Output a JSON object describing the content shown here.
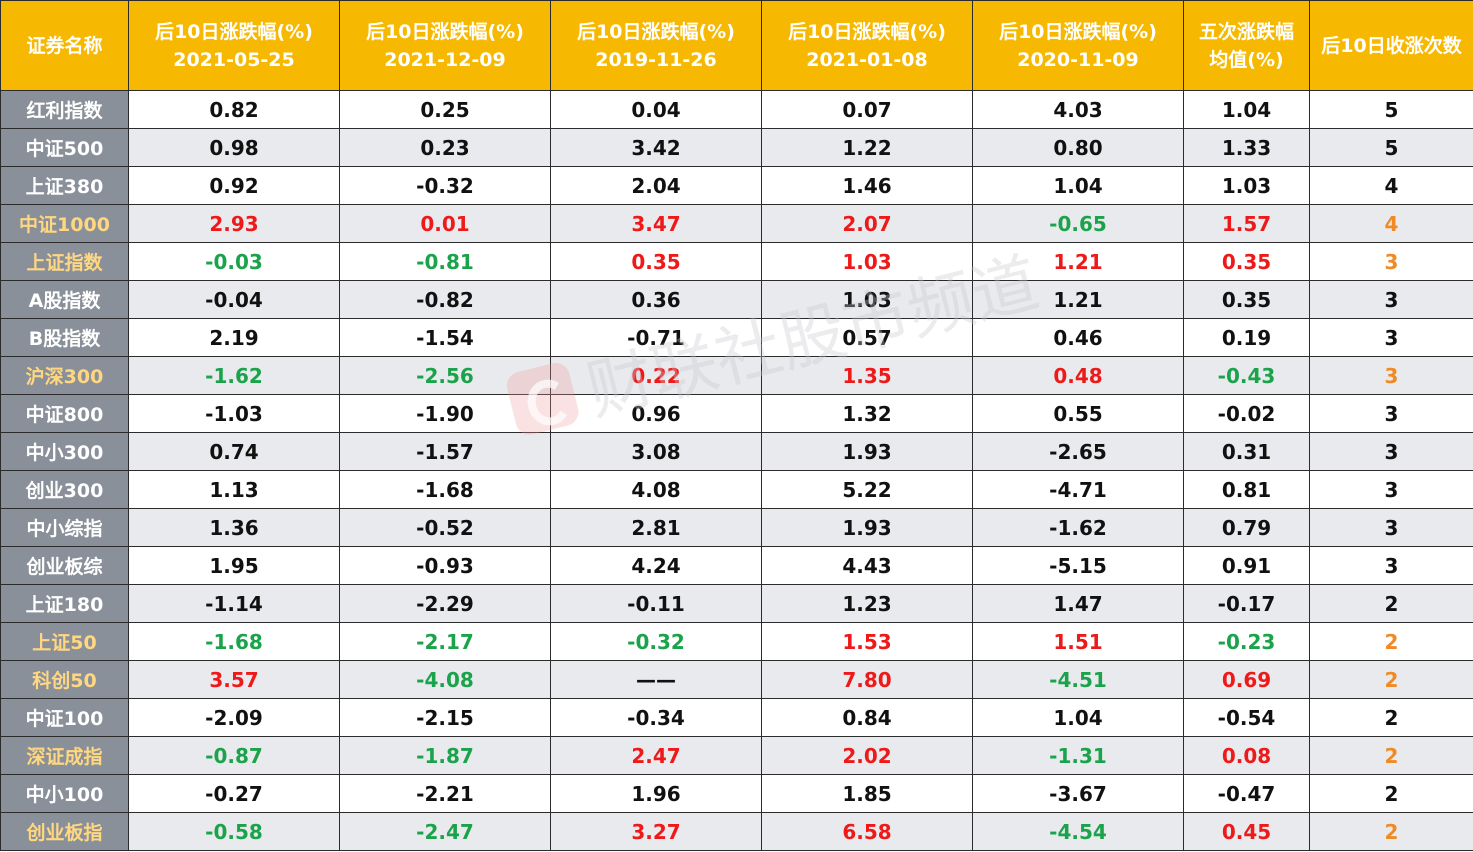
{
  "header": {
    "col0": "证券名称",
    "col1": [
      "后10日涨跌幅(%)",
      "2021-05-25"
    ],
    "col2": [
      "后10日涨跌幅(%)",
      "2021-12-09"
    ],
    "col3": [
      "后10日涨跌幅(%)",
      "2019-11-26"
    ],
    "col4": [
      "后10日涨跌幅(%)",
      "2021-01-08"
    ],
    "col5": [
      "后10日涨跌幅(%)",
      "2020-11-09"
    ],
    "col6": [
      "五次涨跌幅",
      "均值(%)"
    ],
    "col7": "后10日收涨次数"
  },
  "rows": [
    {
      "name": "红利指数",
      "highlight": false,
      "values": [
        "0.82",
        "0.25",
        "0.04",
        "0.07",
        "4.03",
        "1.04"
      ],
      "count": "5"
    },
    {
      "name": "中证500",
      "highlight": false,
      "values": [
        "0.98",
        "0.23",
        "3.42",
        "1.22",
        "0.80",
        "1.33"
      ],
      "count": "5"
    },
    {
      "name": "上证380",
      "highlight": false,
      "values": [
        "0.92",
        "-0.32",
        "2.04",
        "1.46",
        "1.04",
        "1.03"
      ],
      "count": "4"
    },
    {
      "name": "中证1000",
      "highlight": true,
      "values": [
        "2.93",
        "0.01",
        "3.47",
        "2.07",
        "-0.65",
        "1.57"
      ],
      "count": "4"
    },
    {
      "name": "上证指数",
      "highlight": true,
      "values": [
        "-0.03",
        "-0.81",
        "0.35",
        "1.03",
        "1.21",
        "0.35"
      ],
      "count": "3"
    },
    {
      "name": "A股指数",
      "highlight": false,
      "values": [
        "-0.04",
        "-0.82",
        "0.36",
        "1.03",
        "1.21",
        "0.35"
      ],
      "count": "3"
    },
    {
      "name": "B股指数",
      "highlight": false,
      "values": [
        "2.19",
        "-1.54",
        "-0.71",
        "0.57",
        "0.46",
        "0.19"
      ],
      "count": "3"
    },
    {
      "name": "沪深300",
      "highlight": true,
      "values": [
        "-1.62",
        "-2.56",
        "0.22",
        "1.35",
        "0.48",
        "-0.43"
      ],
      "count": "3"
    },
    {
      "name": "中证800",
      "highlight": false,
      "values": [
        "-1.03",
        "-1.90",
        "0.96",
        "1.32",
        "0.55",
        "-0.02"
      ],
      "count": "3"
    },
    {
      "name": "中小300",
      "highlight": false,
      "values": [
        "0.74",
        "-1.57",
        "3.08",
        "1.93",
        "-2.65",
        "0.31"
      ],
      "count": "3"
    },
    {
      "name": "创业300",
      "highlight": false,
      "values": [
        "1.13",
        "-1.68",
        "4.08",
        "5.22",
        "-4.71",
        "0.81"
      ],
      "count": "3"
    },
    {
      "name": "中小综指",
      "highlight": false,
      "values": [
        "1.36",
        "-0.52",
        "2.81",
        "1.93",
        "-1.62",
        "0.79"
      ],
      "count": "3"
    },
    {
      "name": "创业板综",
      "highlight": false,
      "values": [
        "1.95",
        "-0.93",
        "4.24",
        "4.43",
        "-5.15",
        "0.91"
      ],
      "count": "3"
    },
    {
      "name": "上证180",
      "highlight": false,
      "values": [
        "-1.14",
        "-2.29",
        "-0.11",
        "1.23",
        "1.47",
        "-0.17"
      ],
      "count": "2"
    },
    {
      "name": "上证50",
      "highlight": true,
      "values": [
        "-1.68",
        "-2.17",
        "-0.32",
        "1.53",
        "1.51",
        "-0.23"
      ],
      "count": "2"
    },
    {
      "name": "科创50",
      "highlight": true,
      "values": [
        "3.57",
        "-4.08",
        "——",
        "7.80",
        "-4.51",
        "0.69"
      ],
      "count": "2"
    },
    {
      "name": "中证100",
      "highlight": false,
      "values": [
        "-2.09",
        "-2.15",
        "-0.34",
        "0.84",
        "1.04",
        "-0.54"
      ],
      "count": "2"
    },
    {
      "name": "深证成指",
      "highlight": true,
      "values": [
        "-0.87",
        "-1.87",
        "2.47",
        "2.02",
        "-1.31",
        "0.08"
      ],
      "count": "2"
    },
    {
      "name": "中小100",
      "highlight": false,
      "values": [
        "-0.27",
        "-2.21",
        "1.96",
        "1.85",
        "-3.67",
        "-0.47"
      ],
      "count": "2"
    },
    {
      "name": "创业板指",
      "highlight": true,
      "values": [
        "-0.58",
        "-2.47",
        "3.27",
        "6.58",
        "-4.54",
        "0.45"
      ],
      "count": "2"
    }
  ],
  "watermark": {
    "text": "财联社股市频道",
    "icon": "cls-logo-icon"
  },
  "colors": {
    "header_bg": "#f6b800",
    "name_bg": "#8a9099",
    "up": "#ee1a1a",
    "down": "#1aa34a",
    "count_highlight": "#f08a24",
    "name_highlight": "#ffd780"
  }
}
